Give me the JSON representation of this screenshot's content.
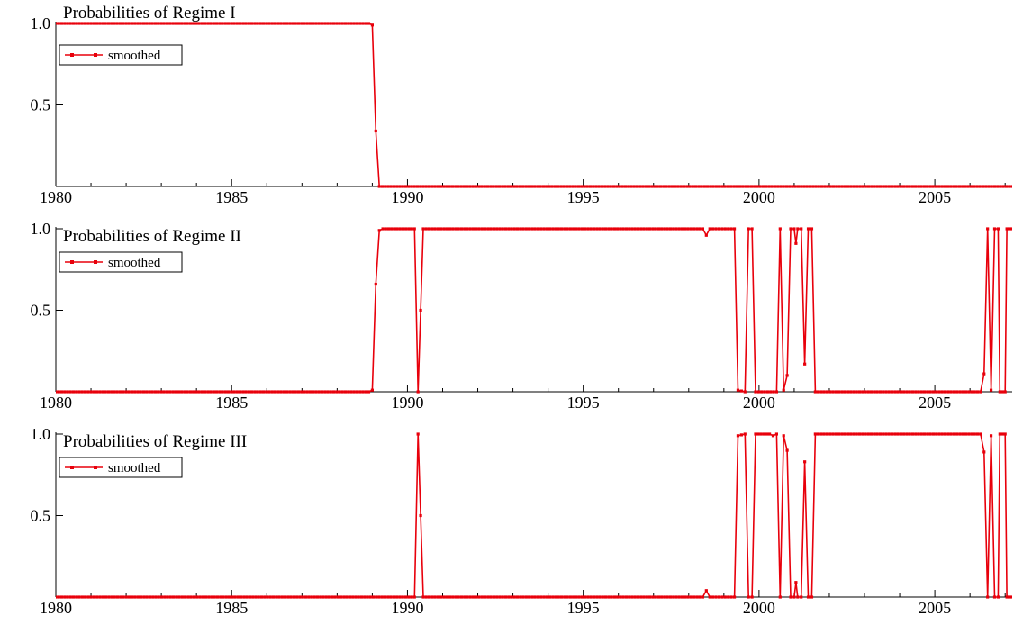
{
  "chart_data": [
    {
      "type": "line",
      "title": "Probabilities of Regime I",
      "legend": "smoothed",
      "color": "#e8000b",
      "xlim": [
        1980.0,
        2007.2
      ],
      "ylim": [
        0,
        1.0
      ],
      "xticks": [
        "1980",
        "1985",
        "1990",
        "1995",
        "2000",
        "2005"
      ],
      "yticks": [
        "1.0",
        "0.5"
      ],
      "segments": [
        [
          1980.0,
          1.0
        ],
        [
          1988.9,
          1.0
        ],
        [
          1989.0,
          0.99
        ],
        [
          1989.1,
          0.34
        ],
        [
          1989.2,
          0.0
        ],
        [
          2007.2,
          0.0
        ]
      ]
    },
    {
      "type": "line",
      "title": "Probabilities of Regime II",
      "legend": "smoothed",
      "color": "#e8000b",
      "xlim": [
        1980.0,
        2007.2
      ],
      "ylim": [
        0,
        1.0
      ],
      "xticks": [
        "1980",
        "1985",
        "1990",
        "1995",
        "2000",
        "2005"
      ],
      "yticks": [
        "1.0",
        "0.5"
      ],
      "segments": [
        [
          1980.0,
          0.0
        ],
        [
          1988.9,
          0.0
        ],
        [
          1989.0,
          0.01
        ],
        [
          1989.1,
          0.66
        ],
        [
          1989.2,
          0.99
        ],
        [
          1989.3,
          1.0
        ],
        [
          1990.2,
          1.0
        ],
        [
          1990.3,
          0.0
        ],
        [
          1990.45,
          1.0
        ],
        [
          1998.4,
          1.0
        ],
        [
          1998.5,
          0.96
        ],
        [
          1998.6,
          1.0
        ],
        [
          1999.3,
          1.0
        ],
        [
          1999.4,
          0.01
        ],
        [
          1999.6,
          0.0
        ],
        [
          1999.7,
          1.0
        ],
        [
          1999.8,
          1.0
        ],
        [
          1999.9,
          0.0
        ],
        [
          2000.5,
          0.0
        ],
        [
          2000.6,
          1.0
        ],
        [
          2000.7,
          0.01
        ],
        [
          2000.8,
          0.1
        ],
        [
          2000.9,
          1.0
        ],
        [
          2001.0,
          1.0
        ],
        [
          2001.05,
          0.91
        ],
        [
          2001.1,
          1.0
        ],
        [
          2001.2,
          1.0
        ],
        [
          2001.3,
          0.17
        ],
        [
          2001.4,
          1.0
        ],
        [
          2001.5,
          1.0
        ],
        [
          2001.6,
          0.0
        ],
        [
          2006.3,
          0.0
        ],
        [
          2006.4,
          0.11
        ],
        [
          2006.5,
          1.0
        ],
        [
          2006.6,
          0.01
        ],
        [
          2006.7,
          1.0
        ],
        [
          2006.8,
          1.0
        ],
        [
          2006.85,
          0.0
        ],
        [
          2007.0,
          0.0
        ],
        [
          2007.05,
          1.0
        ],
        [
          2007.2,
          1.0
        ]
      ]
    },
    {
      "type": "line",
      "title": "Probabilities of Regime III",
      "legend": "smoothed",
      "color": "#e8000b",
      "xlim": [
        1980.0,
        2007.2
      ],
      "ylim": [
        0,
        1.0
      ],
      "xticks": [
        "1980",
        "1985",
        "1990",
        "1995",
        "2000",
        "2005"
      ],
      "yticks": [
        "1.0",
        "0.5"
      ],
      "segments": [
        [
          1980.0,
          0.0
        ],
        [
          1990.2,
          0.0
        ],
        [
          1990.3,
          1.0
        ],
        [
          1990.45,
          0.0
        ],
        [
          1998.4,
          0.0
        ],
        [
          1998.5,
          0.04
        ],
        [
          1998.6,
          0.0
        ],
        [
          1999.3,
          0.0
        ],
        [
          1999.4,
          0.99
        ],
        [
          1999.6,
          1.0
        ],
        [
          1999.7,
          0.0
        ],
        [
          1999.8,
          0.0
        ],
        [
          1999.9,
          1.0
        ],
        [
          2000.3,
          1.0
        ],
        [
          2000.4,
          0.99
        ],
        [
          2000.5,
          1.0
        ],
        [
          2000.6,
          0.0
        ],
        [
          2000.7,
          0.99
        ],
        [
          2000.8,
          0.9
        ],
        [
          2000.9,
          0.0
        ],
        [
          2001.0,
          0.0
        ],
        [
          2001.05,
          0.09
        ],
        [
          2001.1,
          0.0
        ],
        [
          2001.2,
          0.0
        ],
        [
          2001.3,
          0.83
        ],
        [
          2001.4,
          0.0
        ],
        [
          2001.5,
          0.0
        ],
        [
          2001.6,
          1.0
        ],
        [
          2006.3,
          1.0
        ],
        [
          2006.4,
          0.89
        ],
        [
          2006.5,
          0.0
        ],
        [
          2006.6,
          0.99
        ],
        [
          2006.7,
          0.0
        ],
        [
          2006.8,
          0.0
        ],
        [
          2006.85,
          1.0
        ],
        [
          2007.0,
          1.0
        ],
        [
          2007.05,
          0.0
        ],
        [
          2007.2,
          0.0
        ]
      ]
    }
  ]
}
